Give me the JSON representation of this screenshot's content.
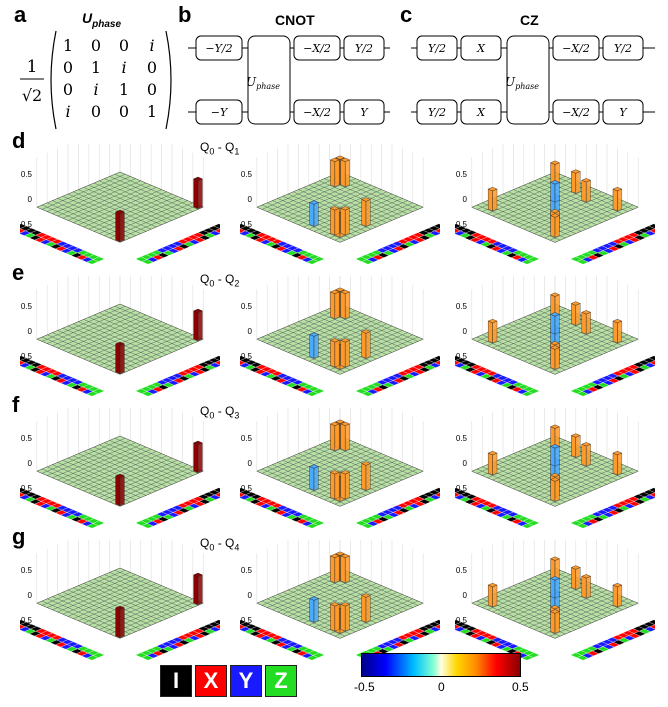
{
  "panels": {
    "a": "a",
    "b": "b",
    "c": "c",
    "d": "d",
    "e": "e",
    "f": "f",
    "g": "g"
  },
  "panel_a": {
    "title_main": "U",
    "title_sub": "phase",
    "prefactor_num": "1",
    "prefactor_den": "√2",
    "matrix": [
      [
        "1",
        "0",
        "0",
        "i"
      ],
      [
        "0",
        "1",
        "i",
        "0"
      ],
      [
        "0",
        "i",
        "1",
        "0"
      ],
      [
        "i",
        "0",
        "0",
        "1"
      ]
    ]
  },
  "panel_b": {
    "title": "CNOT",
    "top_gates": [
      "−Y/2",
      "−X/2",
      "Y/2"
    ],
    "bottom_gates": [
      "−Y",
      "−X/2",
      "Y"
    ],
    "center_gate_main": "U",
    "center_gate_sub": "phase"
  },
  "panel_c": {
    "title": "CZ",
    "top_gates": [
      "Y/2",
      "X",
      "−X/2",
      "Y/2"
    ],
    "bottom_gates": [
      "Y/2",
      "X",
      "−X/2",
      "Y"
    ],
    "center_gate_main": "U",
    "center_gate_sub": "phase"
  },
  "rows": [
    {
      "letter": "d",
      "label_main": "Q",
      "label_sub1": "0",
      "label_mid": " - Q",
      "label_sub2": "1"
    },
    {
      "letter": "e",
      "label_main": "Q",
      "label_sub1": "0",
      "label_mid": " - Q",
      "label_sub2": "2"
    },
    {
      "letter": "f",
      "label_main": "Q",
      "label_sub1": "0",
      "label_mid": " - Q",
      "label_sub2": "3"
    },
    {
      "letter": "g",
      "label_main": "Q",
      "label_sub1": "0",
      "label_mid": " - Q",
      "label_sub2": "4"
    }
  ],
  "zaxis_ticks": [
    "0.5",
    "0",
    "-0.5"
  ],
  "legend": {
    "boxes": [
      {
        "label": "I",
        "color": "#000000"
      },
      {
        "label": "X",
        "color": "#ff0000"
      },
      {
        "label": "Y",
        "color": "#1a1aff"
      },
      {
        "label": "Z",
        "color": "#22dd22"
      }
    ]
  },
  "colorbar": {
    "min_label": "-0.5",
    "mid_label": "0",
    "max_label": "0.5"
  },
  "colors": {
    "floor": "#b8e0a4",
    "dark_bar": "#8b0000",
    "orange_bar": "#ff9a2a",
    "blue_bar": "#4aaaff"
  }
}
